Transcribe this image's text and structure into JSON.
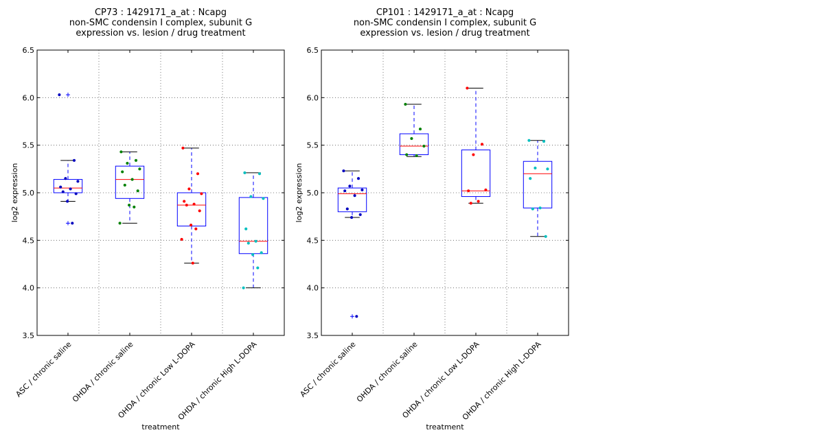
{
  "chart_data": [
    {
      "type": "box",
      "title_lines": [
        "CP73 : 1429171_a_at : Ncapg",
        "non-SMC condensin I complex, subunit G",
        " expression vs. lesion / drug treatment"
      ],
      "xlabel": "treatment",
      "ylabel": "log2 expression",
      "ylim": [
        3.5,
        6.5
      ],
      "yticks": [
        "3.5",
        "4.0",
        "4.5",
        "5.0",
        "5.5",
        "6.0",
        "6.5"
      ],
      "grid": true,
      "categories": [
        "ASC / chronic saline",
        "OHDA / chronic saline",
        "OHDA / chronic Low L-DOPA",
        "OHDA / chronic High L-DOPA"
      ],
      "colors": [
        "#0000bf",
        "#008000",
        "#ff0000",
        "#00bfbf"
      ],
      "boxes": [
        {
          "q1": 5.0,
          "median": 5.05,
          "q3": 5.14,
          "whisker_low": 4.91,
          "whisker_high": 5.34,
          "outliers": [
            6.03,
            4.68
          ]
        },
        {
          "q1": 4.94,
          "median": 5.14,
          "q3": 5.28,
          "whisker_low": 4.68,
          "whisker_high": 5.43,
          "outliers": []
        },
        {
          "q1": 4.65,
          "median": 4.87,
          "q3": 5.0,
          "whisker_low": 4.26,
          "whisker_high": 5.47,
          "outliers": []
        },
        {
          "q1": 4.36,
          "median": 4.49,
          "q3": 4.95,
          "whisker_low": 4.0,
          "whisker_high": 5.21,
          "outliers": []
        }
      ],
      "points": [
        [
          6.03,
          5.34,
          5.15,
          5.12,
          5.06,
          5.04,
          5.01,
          4.99,
          4.91,
          4.68
        ],
        [
          5.43,
          5.34,
          5.31,
          5.25,
          5.22,
          5.14,
          5.08,
          5.02,
          4.87,
          4.85,
          4.68
        ],
        [
          5.47,
          5.2,
          5.04,
          4.99,
          4.91,
          4.88,
          4.87,
          4.81,
          4.66,
          4.62,
          4.51,
          4.26
        ],
        [
          5.21,
          5.2,
          4.96,
          4.94,
          4.62,
          4.49,
          4.47,
          4.37,
          4.35,
          4.21,
          4.0
        ]
      ]
    },
    {
      "type": "box",
      "title_lines": [
        "CP101 : 1429171_a_at : Ncapg",
        "non-SMC condensin I complex, subunit G",
        " expression vs. lesion / drug treatment"
      ],
      "xlabel": "treatment",
      "ylabel": "log2 expression",
      "ylim": [
        3.5,
        6.5
      ],
      "yticks": [
        "3.5",
        "4.0",
        "4.5",
        "5.0",
        "5.5",
        "6.0",
        "6.5"
      ],
      "grid": true,
      "categories": [
        "ASC / chronic saline",
        "OHDA / chronic saline",
        "OHDA / chronic Low L-DOPA",
        "OHDA / chronic High L-DOPA"
      ],
      "colors": [
        "#0000bf",
        "#008000",
        "#ff0000",
        "#00bfbf"
      ],
      "boxes": [
        {
          "q1": 4.8,
          "median": 4.99,
          "q3": 5.05,
          "whisker_low": 4.74,
          "whisker_high": 5.23,
          "outliers": [
            3.7
          ]
        },
        {
          "q1": 5.4,
          "median": 5.49,
          "q3": 5.62,
          "whisker_low": 5.38,
          "whisker_high": 5.93,
          "outliers": []
        },
        {
          "q1": 4.96,
          "median": 5.02,
          "q3": 5.45,
          "whisker_low": 4.89,
          "whisker_high": 6.1,
          "outliers": []
        },
        {
          "q1": 4.84,
          "median": 5.2,
          "q3": 5.33,
          "whisker_low": 4.54,
          "whisker_high": 5.55,
          "outliers": []
        }
      ],
      "points": [
        [
          5.23,
          5.15,
          5.07,
          5.03,
          5.02,
          4.97,
          4.83,
          4.77,
          4.74,
          3.7
        ],
        [
          5.93,
          5.67,
          5.57,
          5.49,
          5.4,
          5.39
        ],
        [
          6.1,
          5.51,
          5.4,
          5.03,
          5.02,
          4.91,
          4.89
        ],
        [
          5.55,
          5.54,
          5.26,
          5.25,
          5.15,
          4.84,
          4.83,
          4.54
        ]
      ]
    }
  ]
}
